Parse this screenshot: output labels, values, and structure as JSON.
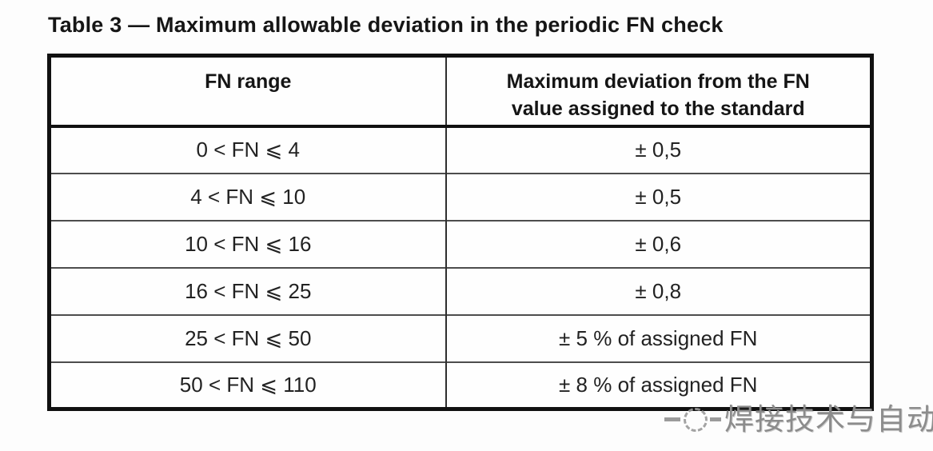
{
  "title": "Table 3 — Maximum allowable deviation in the periodic FN check",
  "table": {
    "header": {
      "col1": "FN range",
      "col2": "Maximum deviation from the FN value assigned to the standard"
    },
    "rows": [
      {
        "range": "0 < FN ⩽ 4",
        "deviation": "± 0,5"
      },
      {
        "range": "4 < FN ⩽ 10",
        "deviation": "± 0,5"
      },
      {
        "range": "10 < FN ⩽ 16",
        "deviation": "± 0,6"
      },
      {
        "range": "16 < FN ⩽ 25",
        "deviation": "± 0,8"
      },
      {
        "range": "25 < FN ⩽ 50",
        "deviation": "± 5 % of assigned FN"
      },
      {
        "range": "50 < FN ⩽ 110",
        "deviation": "± 8 % of assigned FN"
      }
    ]
  },
  "watermark": {
    "text": "焊接技术与自动化",
    "logo": "dashed-circle-logo"
  },
  "colors": {
    "background": "#fdfdfd",
    "text": "#1c1c1c",
    "border_heavy": "#111111",
    "border_light": "#4d4d4d",
    "watermark": "#8c8c8c"
  }
}
